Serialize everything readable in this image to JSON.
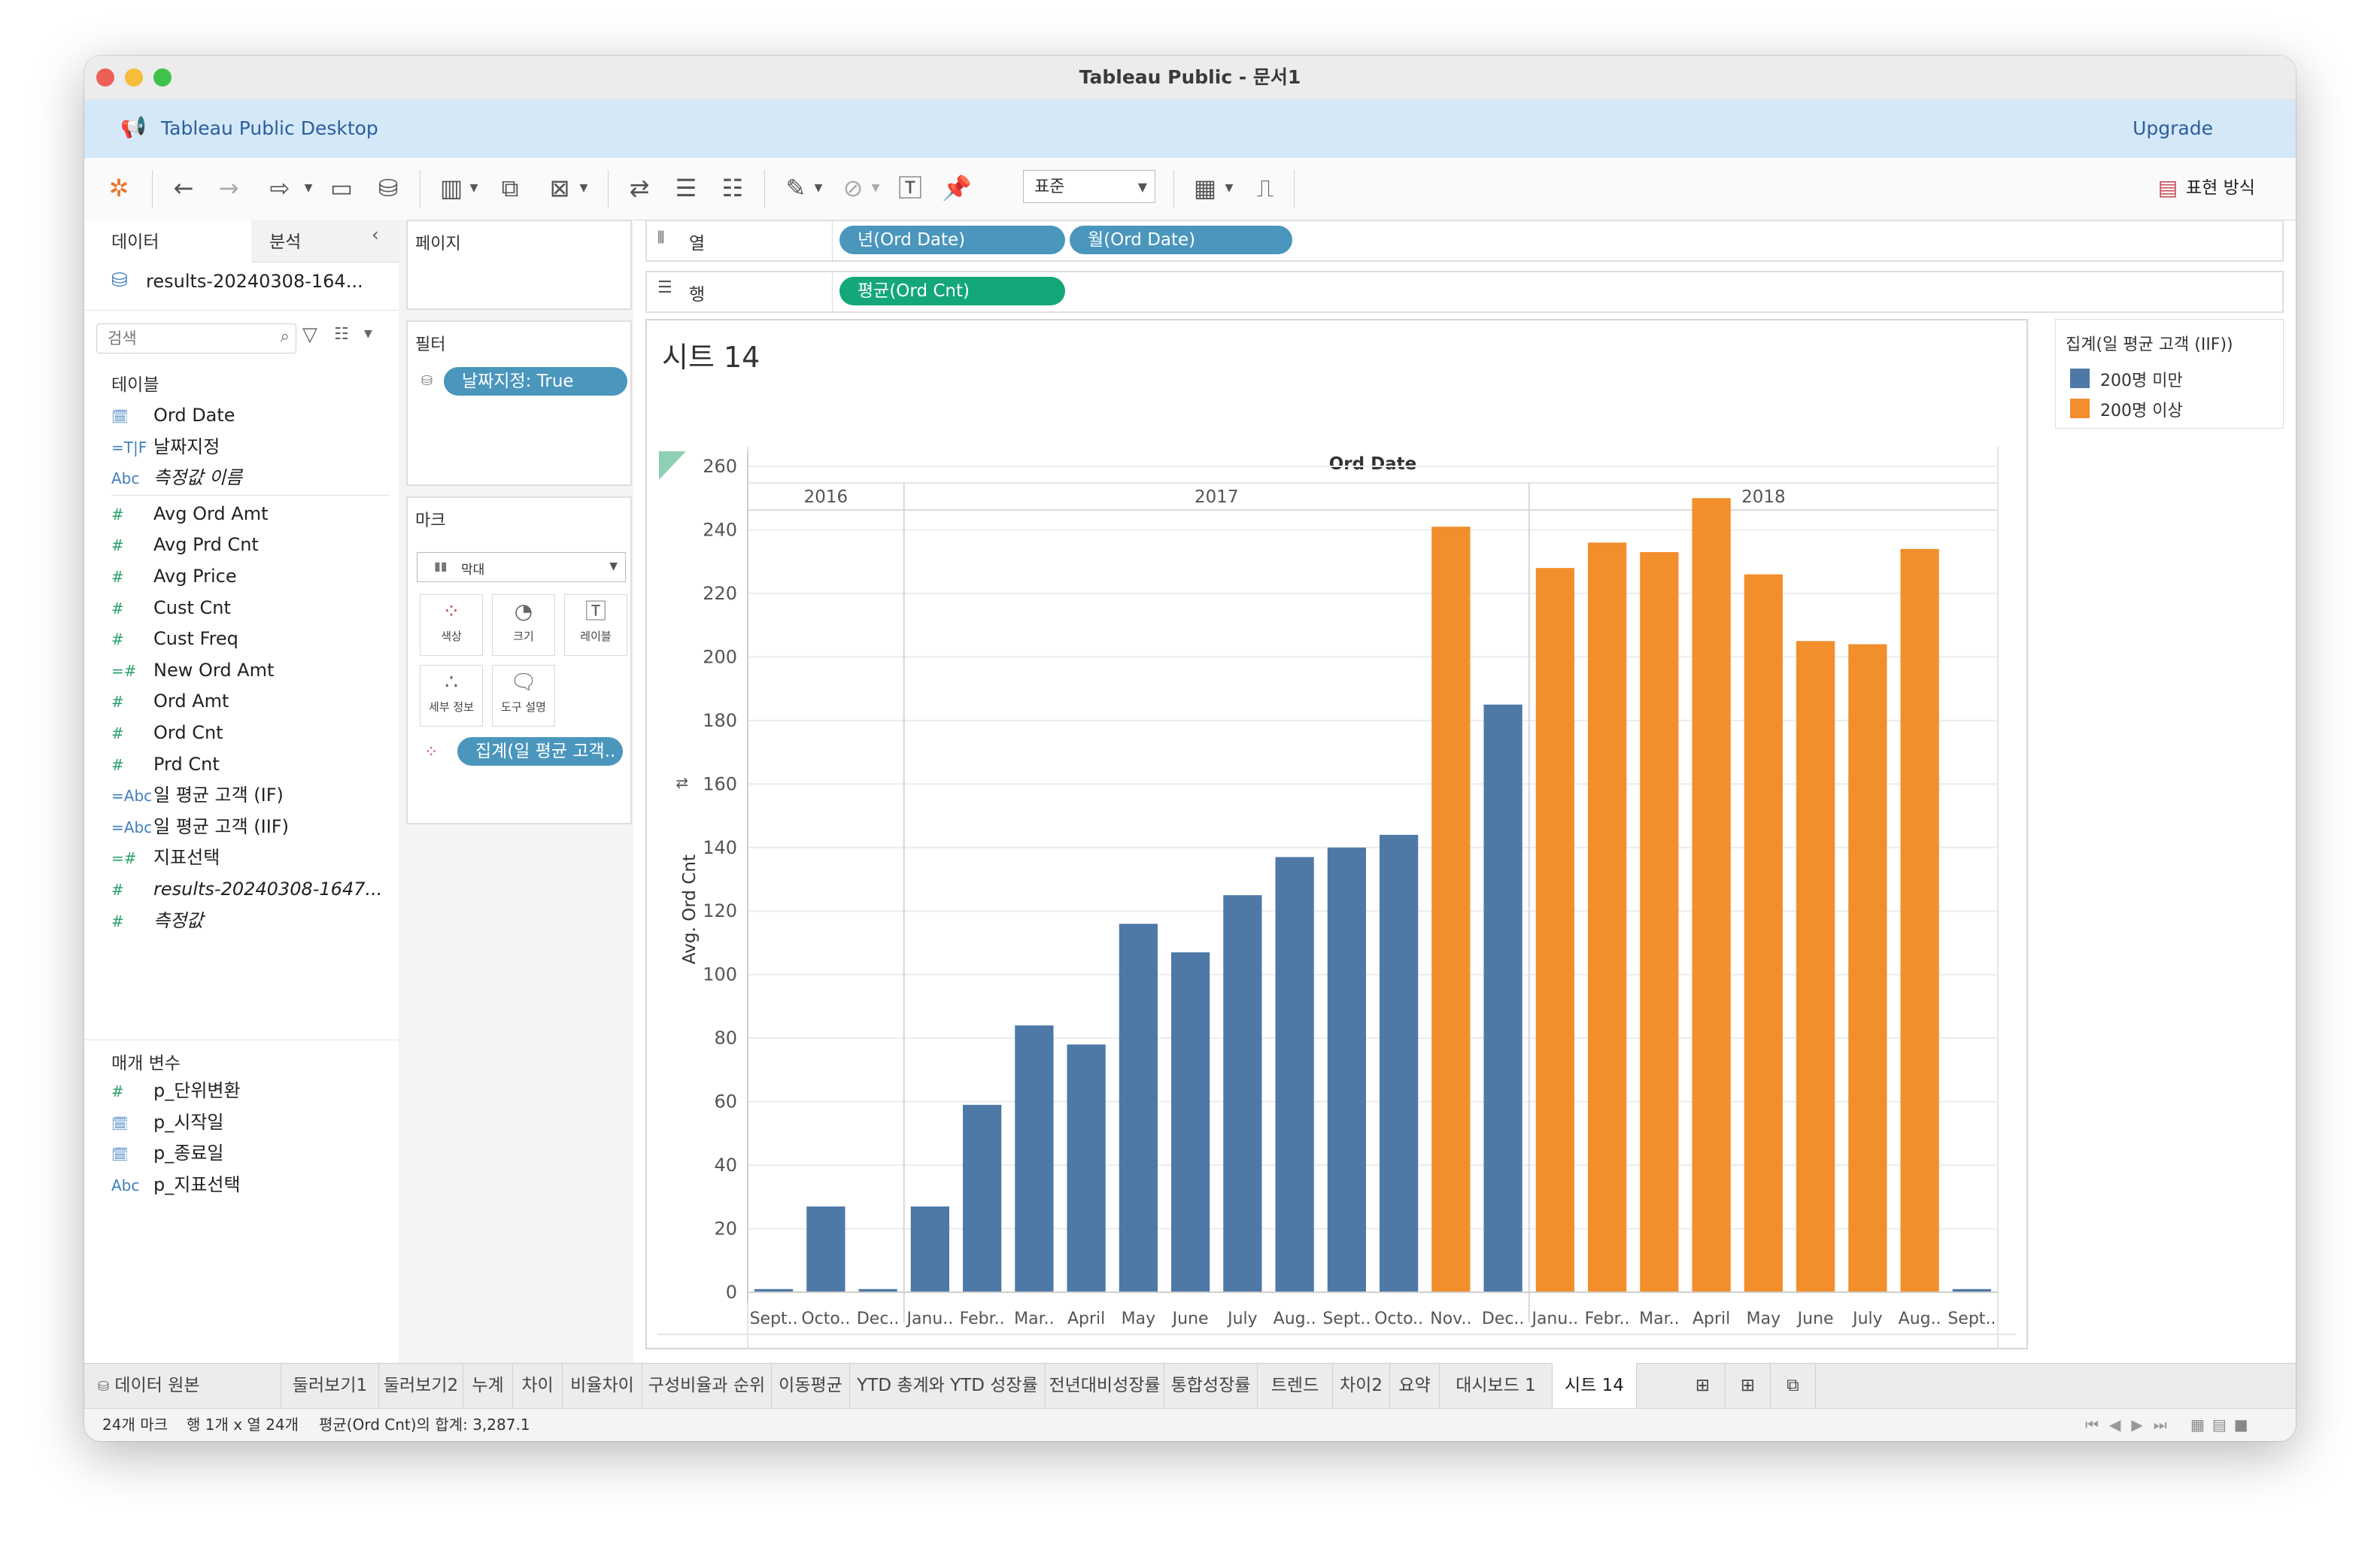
{
  "window": {
    "title": "Tableau Public - 문서1"
  },
  "banner": {
    "title": "Tableau Public Desktop",
    "upgrade": "Upgrade"
  },
  "toolbar": {
    "format_select": "표준",
    "show_me": "표현 방식"
  },
  "data_pane": {
    "tab_data": "데이터",
    "tab_analysis": "분석",
    "datasource": "results-20240308-164...",
    "search_placeholder": "검색",
    "tables_header": "테이블",
    "fields": [
      {
        "icon": "calendar-icon",
        "glyph": "🗓",
        "label": "Ord Date"
      },
      {
        "icon": "boolean-calc-icon",
        "glyph": "=T|F",
        "label": "날짜지정"
      },
      {
        "icon": "text-icon",
        "glyph": "Abc",
        "label": "측정값 이름"
      },
      {
        "icon": "number-icon",
        "glyph": "#",
        "label": "Avg Ord Amt"
      },
      {
        "icon": "number-icon",
        "glyph": "#",
        "label": "Avg Prd Cnt"
      },
      {
        "icon": "number-icon",
        "glyph": "#",
        "label": "Avg Price"
      },
      {
        "icon": "number-icon",
        "glyph": "#",
        "label": "Cust Cnt"
      },
      {
        "icon": "number-icon",
        "glyph": "#",
        "label": "Cust Freq"
      },
      {
        "icon": "calc-number-icon",
        "glyph": "=#",
        "label": "New Ord Amt"
      },
      {
        "icon": "number-icon",
        "glyph": "#",
        "label": "Ord Amt"
      },
      {
        "icon": "number-icon",
        "glyph": "#",
        "label": "Ord Cnt"
      },
      {
        "icon": "number-icon",
        "glyph": "#",
        "label": "Prd Cnt"
      },
      {
        "icon": "calc-text-icon",
        "glyph": "=Abc",
        "label": "일 평균 고객 (IF)"
      },
      {
        "icon": "calc-text-icon",
        "glyph": "=Abc",
        "label": "일 평균 고객 (IIF)"
      },
      {
        "icon": "calc-number-icon",
        "glyph": "=#",
        "label": "지표선택"
      },
      {
        "icon": "number-icon",
        "glyph": "#",
        "label": "results-20240308-1647..."
      },
      {
        "icon": "number-icon",
        "glyph": "#",
        "label": "측정값"
      }
    ],
    "params_header": "매개 변수",
    "params": [
      {
        "icon": "number-icon",
        "glyph": "#",
        "label": "p_단위변환"
      },
      {
        "icon": "calendar-icon",
        "glyph": "🗓",
        "label": "p_시작일"
      },
      {
        "icon": "calendar-icon",
        "glyph": "🗓",
        "label": "p_종료일"
      },
      {
        "icon": "text-icon",
        "glyph": "Abc",
        "label": "p_지표선택"
      }
    ]
  },
  "shelves": {
    "pages": "페이지",
    "filters": "필터",
    "filter_pill": "날짜지정: True",
    "marks": "마크",
    "mark_type": "막대",
    "mark_buttons": [
      "색상",
      "크기",
      "레이블",
      "세부 정보",
      "도구 설명"
    ],
    "marks_pill": "집계(일 평균 고객..",
    "columns_label": "열",
    "rows_label": "행",
    "col_pill_1": "년(Ord Date)",
    "col_pill_2": "월(Ord Date)",
    "row_pill": "평균(Ord Cnt)"
  },
  "sheet": {
    "title": "시트 14"
  },
  "legend": {
    "title": "집계(일 평균 고객 (IIF))",
    "items": [
      {
        "label": "200명 미만",
        "color": "#4e79a7"
      },
      {
        "label": "200명 이상",
        "color": "#f28e2b"
      }
    ]
  },
  "chart_data": {
    "type": "bar",
    "title": "",
    "xlabel": "Ord Date",
    "ylabel": "Avg. Ord Cnt",
    "ylim": [
      0,
      260
    ],
    "yticks": [
      0,
      20,
      40,
      60,
      80,
      100,
      120,
      140,
      160,
      180,
      200,
      220,
      240,
      260
    ],
    "years": [
      {
        "year": "2016",
        "count": 3
      },
      {
        "year": "2017",
        "count": 12
      },
      {
        "year": "2018",
        "count": 9
      }
    ],
    "categories": [
      "Sept..",
      "Octo..",
      "Dec..",
      "Janu..",
      "Febr..",
      "Mar..",
      "April",
      "May",
      "June",
      "July",
      "Aug..",
      "Sept..",
      "Octo..",
      "Nov..",
      "Dec..",
      "Janu..",
      "Febr..",
      "Mar..",
      "April",
      "May",
      "June",
      "July",
      "Aug..",
      "Sept.."
    ],
    "values": [
      1,
      27,
      1,
      27,
      59,
      84,
      78,
      116,
      107,
      125,
      137,
      140,
      144,
      241,
      185,
      228,
      236,
      233,
      250,
      226,
      205,
      204,
      234,
      1
    ],
    "groups": [
      "200명 미만",
      "200명 미만",
      "200명 미만",
      "200명 미만",
      "200명 미만",
      "200명 미만",
      "200명 미만",
      "200명 미만",
      "200명 미만",
      "200명 미만",
      "200명 미만",
      "200명 미만",
      "200명 미만",
      "200명 이상",
      "200명 미만",
      "200명 이상",
      "200명 이상",
      "200명 이상",
      "200명 이상",
      "200명 이상",
      "200명 이상",
      "200명 이상",
      "200명 이상",
      "200명 미만"
    ],
    "colors": {
      "200명 미만": "#4e79a7",
      "200명 이상": "#f28e2b"
    }
  },
  "tabs": {
    "datasource": "데이터 원본",
    "sheets": [
      "둘러보기1",
      "둘러보기2",
      "누계",
      "차이",
      "비율차이",
      "구성비율과 순위",
      "이동평균",
      "YTD 총계와 YTD 성장률",
      "전년대비성장률",
      "통합성장률",
      "트렌드",
      "차이2",
      "요약",
      "대시보드 1",
      "시트 14"
    ],
    "active": "시트 14"
  },
  "status": {
    "marks": "24개 마크",
    "rows_cols": "행 1개 x 열 24개",
    "sum": "평균(Ord Cnt)의 합계: 3,287.1"
  }
}
